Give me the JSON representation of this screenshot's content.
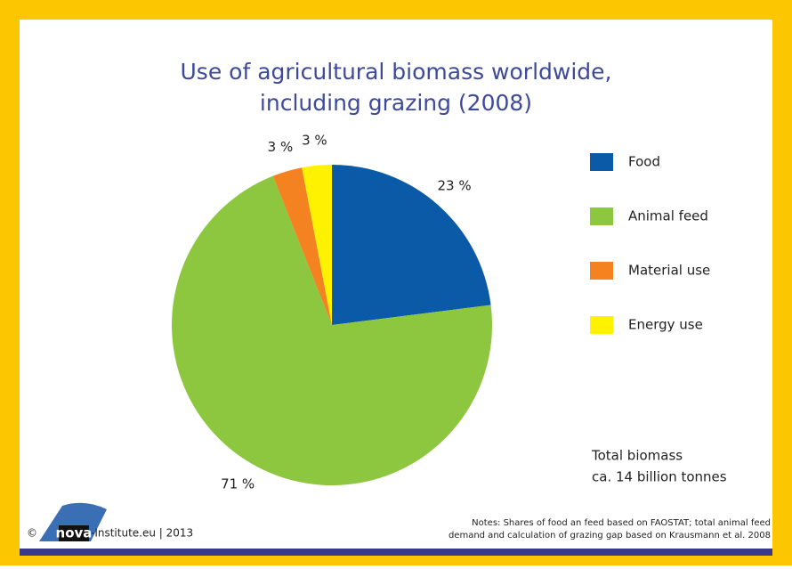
{
  "chart_data": {
    "type": "pie",
    "title": [
      "Use of agricultural biomass worldwide,",
      "including grazing (2008)"
    ],
    "categories": [
      "Food",
      "Animal feed",
      "Material use",
      "Energy use"
    ],
    "values": [
      23,
      71,
      3,
      3
    ],
    "value_labels": [
      "23 %",
      "71 %",
      "3 %",
      "3 %"
    ],
    "colors": [
      "#0a5aa8",
      "#8dc63f",
      "#f58220",
      "#fff200"
    ],
    "legend": "right",
    "annotation": [
      "Total biomass",
      "ca. 14 billion tonnes"
    ],
    "notes": [
      "Notes: Shares of food an feed based on FAOSTAT; total animal feed",
      "demand and calculation of grazing gap based on Krausmann et al. 2008"
    ],
    "copyright": "©",
    "logo": "nova",
    "credit": "-Institute.eu | 2013"
  }
}
